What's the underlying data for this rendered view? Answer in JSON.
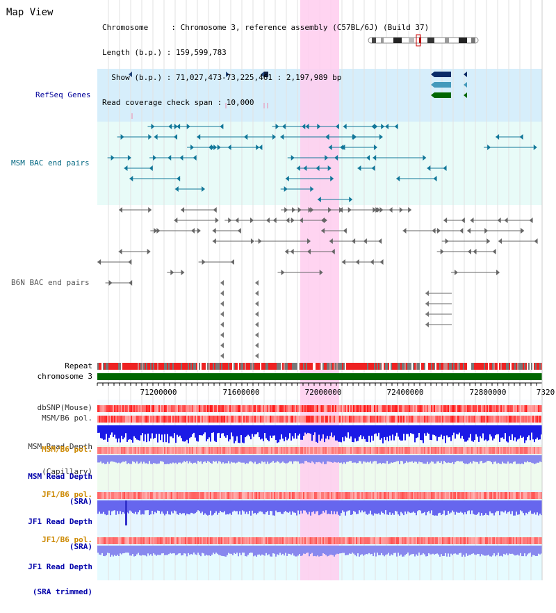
{
  "view_title": "Map View",
  "info": {
    "chromosome_line": "Chromosome     : Chromosome 3, reference assembly (C57BL/6J) (Build 37)",
    "length_line": "Length (b.p.) : 159,599,783",
    "show_line": "  Show (b.p.) : 71,027,473-73,225,461 : 2,197,989 bp",
    "coverage_line": "Read coverage check span : 10,000"
  },
  "tracks": {
    "refseq_genes": "RefSeq Genes",
    "msm_bac": "MSM BAC end pairs",
    "b6n_bac": "B6N BAC end pairs",
    "repeat": "Repeat",
    "chromosome": "chromosome 3",
    "dbsnp": "dbSNP(Mouse)",
    "msm_b6_pol_1": "MSM/B6 pol.",
    "msm_read_depth_cap_1": "MSM Read Depth",
    "msm_read_depth_cap_2": "(Capillary)",
    "msm_b6_pol_2": "MSM/B6 pol.",
    "msm_read_depth_sra_1": "MSM Read Depth",
    "msm_read_depth_sra_2": "(SRA)",
    "jf1_b6_pol_1": "JF1/B6 pol.",
    "jf1_read_depth_sra_1": "JF1 Read Depth",
    "jf1_read_depth_sra_2": "(SRA)",
    "jf1_b6_pol_2": "JF1/B6 pol.",
    "jf1_read_depth_trim_1": "JF1 Read Depth",
    "jf1_read_depth_trim_2": "(SRA trimmed)"
  },
  "axis": {
    "ticks": [
      "71200000",
      "71600000",
      "72000000",
      "72400000",
      "72800000",
      "7320"
    ]
  },
  "colors": {
    "refseq_label": "#000099",
    "msm_label": "#006680",
    "b6n_label": "#555555",
    "pol_label": "#cc8800",
    "depth_label": "#0000aa",
    "highlight": "#ffccee",
    "chromosome_bar": "#006600"
  }
}
